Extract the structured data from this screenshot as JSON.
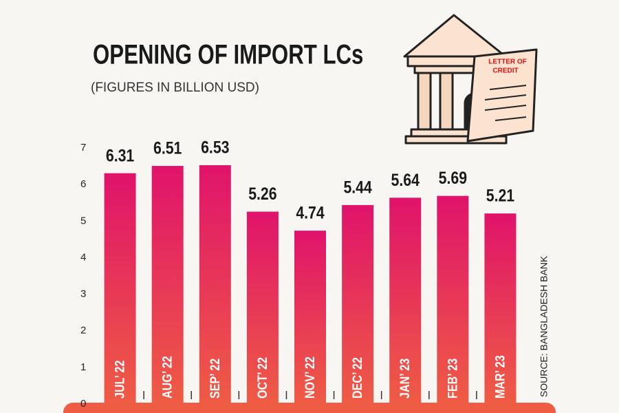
{
  "chart_data": {
    "type": "bar",
    "title": "OPENING OF IMPORT LCs",
    "subtitle": "(FIGURES IN BILLION USD)",
    "source": "SOURCE: BANGLADESH BANK",
    "illustration_text": [
      "LETTER OF",
      "CREDIT"
    ],
    "categories": [
      "JUL’ 22",
      "AUG’ 22",
      "SEP’ 22",
      "OCT’ 22",
      "NOV’ 22",
      "DEC’ 22",
      "JAN’ 23",
      "FEB’ 23",
      "MAR’ 23"
    ],
    "values": [
      6.31,
      6.51,
      6.53,
      5.26,
      4.74,
      5.44,
      5.64,
      5.69,
      5.21
    ],
    "color": "#e0136b",
    "color_bottom": "#ef5c44",
    "ylim": [
      0,
      7
    ],
    "yticks": [
      0,
      1,
      2,
      3,
      4,
      5,
      6,
      7
    ],
    "grid": false
  }
}
